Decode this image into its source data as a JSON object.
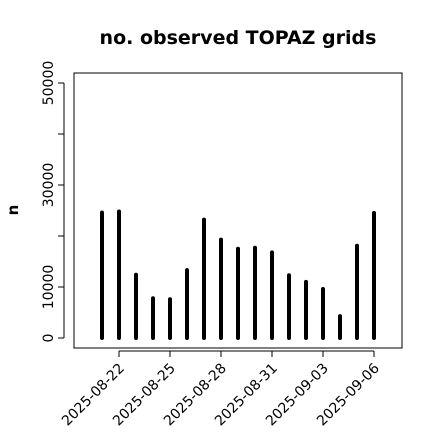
{
  "chart_data": {
    "type": "bar",
    "style": "histogram-spikes",
    "title": "no. observed TOPAZ grids",
    "xlabel": "",
    "ylabel": "n",
    "x": [
      "2025-08-21",
      "2025-08-22",
      "2025-08-23",
      "2025-08-24",
      "2025-08-25",
      "2025-08-26",
      "2025-08-27",
      "2025-08-28",
      "2025-08-29",
      "2025-08-30",
      "2025-08-31",
      "2025-09-01",
      "2025-09-02",
      "2025-09-03",
      "2025-09-04",
      "2025-09-05",
      "2025-09-06"
    ],
    "values": [
      24600,
      24800,
      12400,
      7800,
      7600,
      13300,
      23200,
      19300,
      17500,
      17700,
      16800,
      12300,
      11000,
      9600,
      4300,
      18100,
      24500
    ],
    "ylim": [
      0,
      53000
    ],
    "y_ticks": [
      0,
      10000,
      20000,
      30000,
      40000,
      50000
    ],
    "y_tick_labels": [
      "0",
      "10000",
      "",
      "30000",
      "",
      "50000"
    ],
    "x_ticks": [
      "2025-08-22",
      "2025-08-25",
      "2025-08-28",
      "2025-08-31",
      "2025-09-03",
      "2025-09-06"
    ],
    "x_tick_labels": [
      "2025-08-22",
      "2025-08-25",
      "2025-08-28",
      "2025-08-31",
      "2025-09-03",
      "2025-09-06"
    ],
    "x_tick_colors": [
      "#000000",
      "#000000",
      "#228b22",
      "#000000",
      "#000000",
      "#000000"
    ],
    "bar_color": "#000000",
    "grid": false,
    "legend": "none"
  }
}
